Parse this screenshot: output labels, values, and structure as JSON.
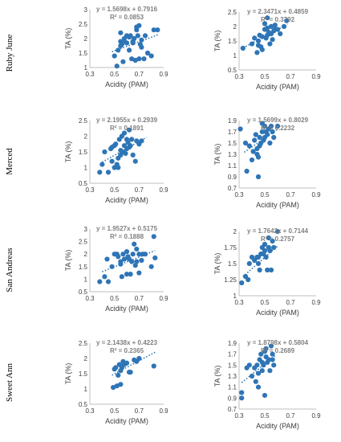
{
  "figure": {
    "row_labels": [
      "Ruby June",
      "Merced",
      "San Andreas",
      "Sweet Ann"
    ],
    "colors": {
      "point": "#2e75b6",
      "trend": "#2e75b6",
      "axis": "#bfbfbf",
      "text": "#404040",
      "equation": "#7f7f7f"
    }
  },
  "chart_data": [
    {
      "type": "scatter",
      "row": "Ruby June",
      "xlabel": "Acidity (PAM)",
      "ylabel": "TA (%)",
      "xlim": [
        0.3,
        0.9
      ],
      "xticks": [
        "0.3",
        "0.5",
        "0.7",
        "0.9"
      ],
      "ylim": [
        1,
        3
      ],
      "yticks": [
        "1",
        "1.5",
        "2",
        "2.5",
        "3"
      ],
      "equation": "y = 1.5698x + 0.7916",
      "r2": "R² = 0.0853",
      "slope": 1.5698,
      "intercept": 0.7916,
      "trend_x": [
        0.48,
        0.86
      ],
      "x": [
        0.5,
        0.52,
        0.53,
        0.55,
        0.55,
        0.56,
        0.57,
        0.58,
        0.6,
        0.6,
        0.62,
        0.63,
        0.64,
        0.65,
        0.66,
        0.67,
        0.68,
        0.68,
        0.7,
        0.7,
        0.71,
        0.72,
        0.74,
        0.75,
        0.77,
        0.8,
        0.82,
        0.85,
        0.55,
        0.58,
        0.62,
        0.65,
        0.69,
        0.72
      ],
      "y": [
        1.4,
        1.05,
        1.6,
        1.9,
        2.2,
        1.8,
        1.2,
        2.0,
        1.85,
        2.1,
        2.05,
        2.1,
        1.3,
        1.9,
        2.0,
        1.25,
        2.3,
        2.4,
        1.3,
        2.45,
        1.8,
        1.95,
        1.3,
        2.1,
        1.5,
        1.4,
        2.3,
        2.3,
        1.75,
        1.9,
        1.6,
        1.85,
        2.1,
        1.7
      ]
    },
    {
      "type": "scatter",
      "row": "Ruby June",
      "xlabel": "Acidity (PAM)",
      "ylabel": "TA (%)",
      "xlim": [
        0.3,
        0.9
      ],
      "xticks": [
        "0.3",
        "0.5",
        "0.7",
        "0.9"
      ],
      "ylim": [
        0.5,
        2.5
      ],
      "yticks": [
        "0.5",
        "1",
        "1.5",
        "2",
        "2.5"
      ],
      "equation": "y = 2.3471x + 0.4859",
      "r2": "R² = 0.3792",
      "slope": 2.3471,
      "intercept": 0.4859,
      "trend_x": [
        0.33,
        0.68
      ],
      "x": [
        0.33,
        0.4,
        0.42,
        0.44,
        0.45,
        0.46,
        0.47,
        0.48,
        0.5,
        0.5,
        0.51,
        0.52,
        0.52,
        0.53,
        0.54,
        0.55,
        0.55,
        0.56,
        0.57,
        0.58,
        0.6,
        0.62,
        0.65,
        0.67,
        0.48,
        0.52,
        0.58,
        0.45
      ],
      "y": [
        1.25,
        1.4,
        1.6,
        1.1,
        1.5,
        1.7,
        1.3,
        1.2,
        1.9,
        2.1,
        1.6,
        1.7,
        2.3,
        1.8,
        1.4,
        1.75,
        2.0,
        1.55,
        1.85,
        1.9,
        1.9,
        1.75,
        2.0,
        2.2,
        1.65,
        1.95,
        2.05,
        1.35
      ]
    },
    {
      "type": "scatter",
      "row": "Merced",
      "xlabel": "Acidity (PAM)",
      "ylabel": "TA (%)",
      "xlim": [
        0.3,
        0.9
      ],
      "xticks": [
        "0.3",
        "0.5",
        "0.7",
        "0.9"
      ],
      "ylim": [
        0.5,
        2.5
      ],
      "yticks": [
        "0.5",
        "1",
        "1.5",
        "2",
        "2.5"
      ],
      "equation": "y = 2.1955x + 0.2939",
      "r2": "R² = 0.1891",
      "slope": 2.1955,
      "intercept": 0.2939,
      "trend_x": [
        0.4,
        0.76
      ],
      "x": [
        0.38,
        0.4,
        0.42,
        0.45,
        0.47,
        0.48,
        0.5,
        0.5,
        0.51,
        0.52,
        0.53,
        0.54,
        0.55,
        0.56,
        0.57,
        0.58,
        0.58,
        0.6,
        0.6,
        0.61,
        0.62,
        0.62,
        0.63,
        0.64,
        0.65,
        0.67,
        0.68,
        0.7,
        0.72,
        0.55,
        0.59,
        0.53,
        0.48
      ],
      "y": [
        0.85,
        1.1,
        1.5,
        0.85,
        1.6,
        1.2,
        1.0,
        1.7,
        1.75,
        1.1,
        1.0,
        1.9,
        1.4,
        2.0,
        1.5,
        1.7,
        2.1,
        1.6,
        1.9,
        1.8,
        1.65,
        2.2,
        1.7,
        1.9,
        1.4,
        1.2,
        1.85,
        1.75,
        1.85,
        1.55,
        1.45,
        1.3,
        1.65
      ]
    },
    {
      "type": "scatter",
      "row": "Merced",
      "xlabel": "Acidity (PAM)",
      "ylabel": "TA (%)",
      "xlim": [
        0.3,
        0.9
      ],
      "xticks": [
        "0.3",
        "0.5",
        "0.7",
        "0.9"
      ],
      "ylim": [
        0.7,
        1.9
      ],
      "yticks": [
        "0.7",
        "0.9",
        "1.1",
        "1.3",
        "1.5",
        "1.7",
        "1.9"
      ],
      "equation": "y = 1.5699x + 0.8029",
      "r2": "R² = 0.2232",
      "slope": 1.5699,
      "intercept": 0.8029,
      "trend_x": [
        0.34,
        0.6
      ],
      "x": [
        0.31,
        0.35,
        0.36,
        0.38,
        0.4,
        0.41,
        0.42,
        0.43,
        0.44,
        0.45,
        0.45,
        0.46,
        0.47,
        0.48,
        0.48,
        0.49,
        0.5,
        0.5,
        0.51,
        0.52,
        0.53,
        0.54,
        0.55,
        0.56,
        0.57,
        0.6,
        0.44,
        0.46
      ],
      "y": [
        1.75,
        1.5,
        1.0,
        1.45,
        1.2,
        1.35,
        1.55,
        1.65,
        1.4,
        1.25,
        0.9,
        1.6,
        1.5,
        1.7,
        1.85,
        1.55,
        1.6,
        1.8,
        1.7,
        1.65,
        1.75,
        1.5,
        1.8,
        1.7,
        1.6,
        1.8,
        1.3,
        1.45
      ]
    },
    {
      "type": "scatter",
      "row": "San Andreas",
      "xlabel": "Acidity (PAM)",
      "ylabel": "TA (%)",
      "xlim": [
        0.3,
        0.9
      ],
      "xticks": [
        "0.3",
        "0.5",
        "0.7",
        "0.9"
      ],
      "ylim": [
        0.5,
        3
      ],
      "yticks": [
        "0.5",
        "1",
        "1.5",
        "2",
        "2.5",
        "3"
      ],
      "equation": "y = 1.9527x + 0.5175",
      "r2": "R² = 0.1888",
      "slope": 1.9527,
      "intercept": 0.5175,
      "trend_x": [
        0.4,
        0.83
      ],
      "x": [
        0.38,
        0.42,
        0.44,
        0.45,
        0.48,
        0.5,
        0.52,
        0.53,
        0.55,
        0.56,
        0.57,
        0.58,
        0.6,
        0.6,
        0.61,
        0.62,
        0.63,
        0.65,
        0.66,
        0.68,
        0.68,
        0.7,
        0.7,
        0.72,
        0.73,
        0.75,
        0.8,
        0.82,
        0.83,
        0.55,
        0.64,
        0.67
      ],
      "y": [
        0.9,
        1.1,
        1.8,
        0.9,
        1.5,
        2.0,
        2.0,
        1.9,
        1.7,
        1.1,
        2.0,
        1.8,
        1.2,
        2.1,
        1.9,
        1.8,
        1.2,
        2.0,
        2.4,
        1.7,
        2.2,
        1.25,
        2.0,
        1.75,
        2.0,
        2.0,
        1.5,
        2.7,
        1.85,
        1.6,
        1.7,
        1.55
      ]
    },
    {
      "type": "scatter",
      "row": "San Andreas",
      "xlabel": "Acidity (PAM)",
      "ylabel": "TA (%)",
      "xlim": [
        0.3,
        0.9
      ],
      "xticks": [
        "0.3",
        "0.5",
        "0.7",
        "0.9"
      ],
      "ylim": [
        1,
        2
      ],
      "yticks": [
        "1",
        "1.25",
        "1.5",
        "1.75",
        "2"
      ],
      "equation": "y = 1.7642x + 0.7144",
      "r2": "R² = 0.2757",
      "slope": 1.7642,
      "intercept": 0.7144,
      "trend_x": [
        0.33,
        0.6
      ],
      "x": [
        0.32,
        0.35,
        0.37,
        0.38,
        0.4,
        0.42,
        0.44,
        0.45,
        0.46,
        0.47,
        0.48,
        0.5,
        0.5,
        0.51,
        0.52,
        0.53,
        0.54,
        0.55,
        0.56,
        0.57,
        0.6,
        0.45,
        0.49,
        0.53
      ],
      "y": [
        1.2,
        1.3,
        1.25,
        1.5,
        1.6,
        1.55,
        1.6,
        1.5,
        1.4,
        1.65,
        1.75,
        1.7,
        1.8,
        1.6,
        1.4,
        1.9,
        1.7,
        1.4,
        1.85,
        1.75,
        2.0,
        1.6,
        1.65,
        1.75
      ]
    },
    {
      "type": "scatter",
      "row": "Sweet Ann",
      "xlabel": "Acidity (PAM)",
      "ylabel": "TA (%)",
      "xlim": [
        0.3,
        0.9
      ],
      "xticks": [
        "0.3",
        "0.5",
        "0.7",
        "0.9"
      ],
      "ylim": [
        0.5,
        2.5
      ],
      "yticks": [
        "0.5",
        "1",
        "1.5",
        "2",
        "2.5"
      ],
      "equation": "y = 2.1438x + 0.4223",
      "r2": "R² = 0.2365",
      "slope": 2.1438,
      "intercept": 0.4223,
      "trend_x": [
        0.48,
        0.84
      ],
      "x": [
        0.49,
        0.5,
        0.51,
        0.52,
        0.53,
        0.54,
        0.55,
        0.56,
        0.57,
        0.58,
        0.6,
        0.62,
        0.63,
        0.66,
        0.68,
        0.7,
        0.82,
        0.55
      ],
      "y": [
        1.05,
        1.65,
        1.7,
        1.1,
        1.45,
        1.8,
        1.15,
        1.7,
        1.9,
        1.8,
        1.85,
        1.55,
        1.55,
        1.95,
        1.9,
        2.0,
        1.75,
        1.6
      ]
    },
    {
      "type": "scatter",
      "row": "Sweet Ann",
      "xlabel": "Acidity (PAM)",
      "ylabel": "TA (%)",
      "xlim": [
        0.3,
        0.9
      ],
      "xticks": [
        "0.3",
        "0.5",
        "0.7",
        "0.9"
      ],
      "ylim": [
        0.7,
        1.9
      ],
      "yticks": [
        "0.7",
        "0.9",
        "1.1",
        "1.3",
        "1.5",
        "1.7",
        "1.9"
      ],
      "equation": "y = 1.8798x + 0.5804",
      "r2": "R² = 0.2689",
      "slope": 1.8798,
      "intercept": 0.5804,
      "trend_x": [
        0.32,
        0.58
      ],
      "x": [
        0.32,
        0.32,
        0.36,
        0.38,
        0.4,
        0.42,
        0.43,
        0.44,
        0.45,
        0.46,
        0.47,
        0.48,
        0.49,
        0.5,
        0.5,
        0.51,
        0.52,
        0.53,
        0.54,
        0.55,
        0.56,
        0.56,
        0.57,
        0.45,
        0.48,
        0.51
      ],
      "y": [
        0.9,
        1.0,
        1.45,
        1.5,
        1.3,
        1.45,
        1.2,
        1.5,
        1.1,
        1.6,
        1.7,
        1.4,
        1.5,
        0.95,
        1.75,
        1.8,
        1.55,
        1.6,
        1.4,
        1.85,
        1.6,
        1.7,
        1.5,
        1.35,
        1.55,
        1.65
      ]
    }
  ]
}
